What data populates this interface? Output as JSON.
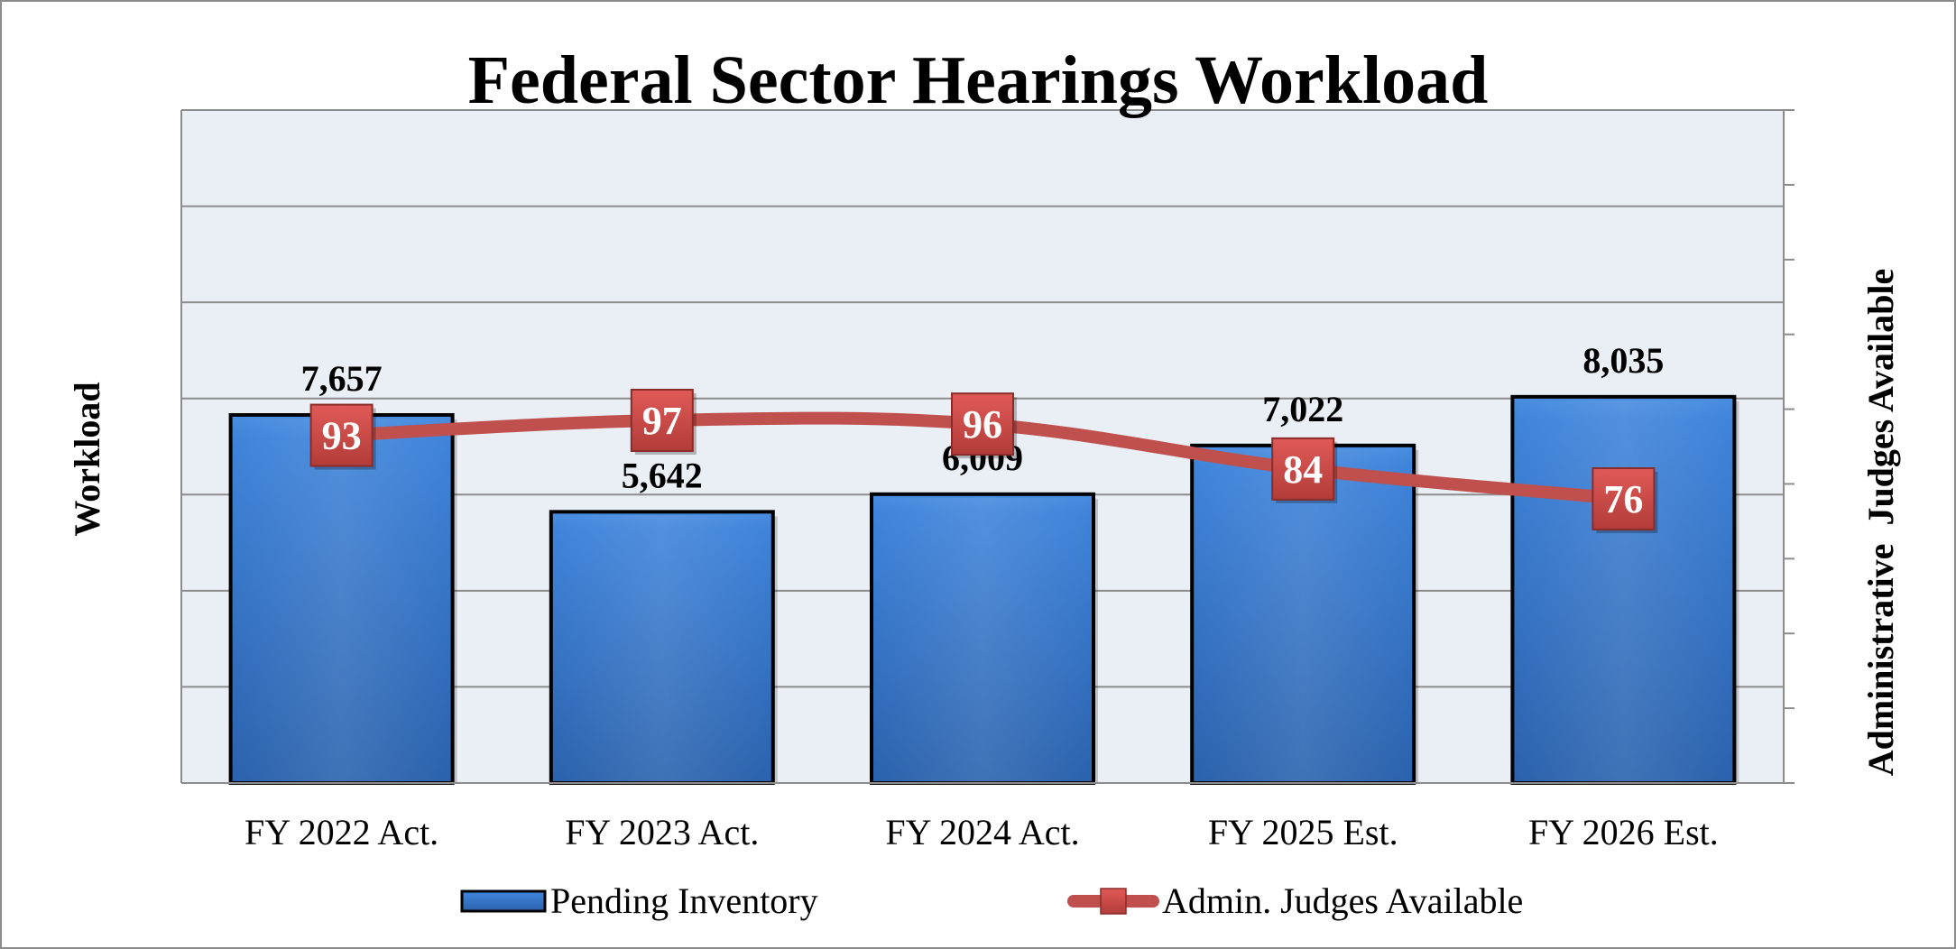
{
  "chart_data": {
    "type": "bar",
    "title": "Federal Sector Hearings Workload",
    "xlabel": "",
    "ylabel": "Workload",
    "y2label": "Administrative  Judges Available",
    "categories": [
      "FY 2022 Act.",
      "FY 2023 Act.",
      "FY 2024 Act.",
      "FY 2025 Est.",
      "FY 2026 Est."
    ],
    "ylim": [
      0,
      14000
    ],
    "y2lim": [
      0,
      180
    ],
    "grid": true,
    "legend_position": "bottom",
    "series": [
      {
        "name": "Pending Inventory",
        "type": "bar",
        "axis": "left",
        "values": [
          7657,
          5642,
          6009,
          7022,
          8035
        ],
        "labels": [
          "7,657",
          "5,642",
          "6,009",
          "7,022",
          "8,035"
        ],
        "color": "#3c7dd0"
      },
      {
        "name": "Admin. Judges Available",
        "type": "line",
        "axis": "right",
        "values": [
          93,
          97,
          96,
          84,
          76
        ],
        "labels": [
          "93",
          "97",
          "96",
          "84",
          "76"
        ],
        "color": "#c0504d"
      }
    ]
  }
}
